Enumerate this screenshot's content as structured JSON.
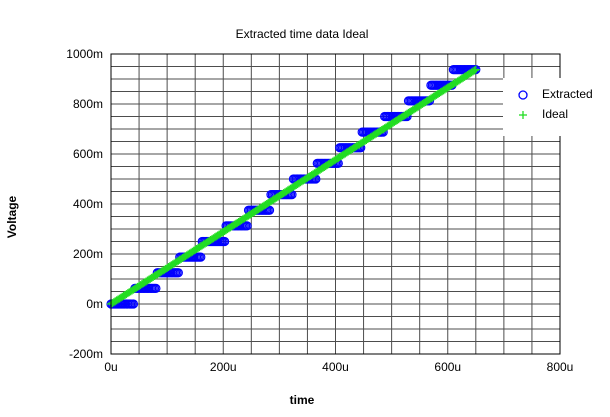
{
  "chart_data": {
    "type": "scatter",
    "title": "Extracted time data Ideal",
    "xlabel": "time",
    "ylabel": "Voltage",
    "xlim": [
      0,
      0.0008
    ],
    "ylim": [
      -0.2,
      1.0
    ],
    "x_ticks": [
      {
        "value": 0,
        "label": "0u"
      },
      {
        "value": 0.0002,
        "label": "200u"
      },
      {
        "value": 0.0004,
        "label": "400u"
      },
      {
        "value": 0.0006,
        "label": "600u"
      },
      {
        "value": 0.0008,
        "label": "800u"
      }
    ],
    "y_ticks": [
      {
        "value": -0.2,
        "label": "-200m"
      },
      {
        "value": 0,
        "label": "0m"
      },
      {
        "value": 0.2,
        "label": "200m"
      },
      {
        "value": 0.4,
        "label": "400m"
      },
      {
        "value": 0.6,
        "label": "600m"
      },
      {
        "value": 0.8,
        "label": "800m"
      },
      {
        "value": 1.0,
        "label": "1000m"
      }
    ],
    "x_divisions": 16,
    "y_divisions": 24,
    "grid": true,
    "legend_position": "right",
    "series": [
      {
        "name": "Extracted",
        "marker": "circle",
        "color": "#0000ff",
        "x_start": 0,
        "x_end": 0.00065,
        "x_step": 2.5e-06,
        "levels": 16,
        "level_step": 0.0625,
        "y_top": 0.9375
      },
      {
        "name": "Ideal",
        "marker": "plus",
        "color": "#22dd22",
        "x_start": 0,
        "x_end": 0.00065,
        "x_step": 2.5e-06,
        "y_start": 0,
        "y_end": 0.9375
      }
    ]
  }
}
